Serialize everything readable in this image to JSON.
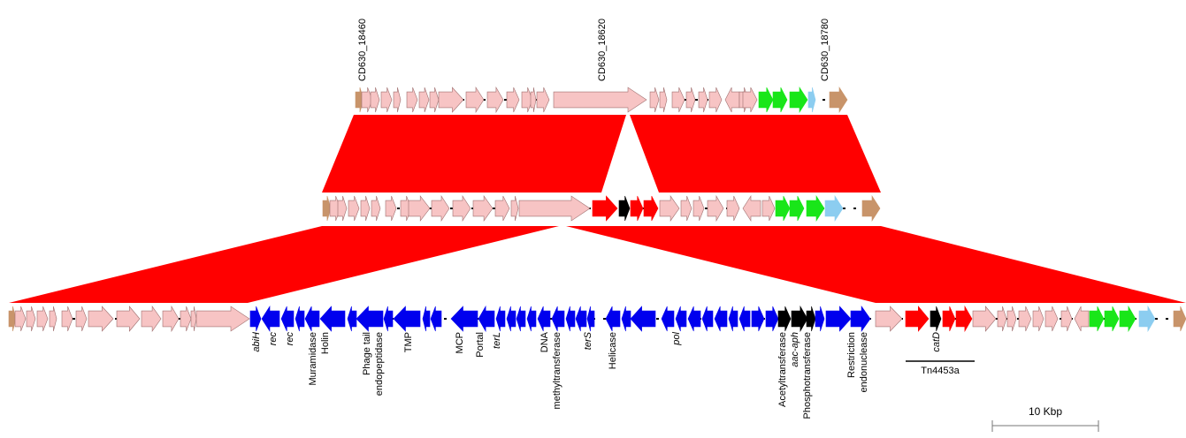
{
  "colors": {
    "homology": "#ff0000",
    "pink": "#f7c4c4",
    "tan": "#c8946a",
    "green": "#19e619",
    "lightblue": "#8ccdf0",
    "blue": "#0000ee",
    "black": "#000000",
    "red": "#ff0000",
    "outline": "#a07070"
  },
  "top_track": {
    "labels": [
      "CD630_18460",
      "CD630_18620",
      "CD630_18780"
    ],
    "gene_colors": [
      "tan",
      "pink",
      "pink",
      "pink",
      "pink",
      "pink",
      "pink",
      "pink",
      "pink",
      "pink",
      "pink",
      "pink",
      "pink",
      "pink",
      "pink",
      "pink",
      "pink",
      "pink",
      "pink",
      "pink",
      "pink",
      "pink",
      "pink",
      "pink",
      "pink",
      "green",
      "green",
      "green",
      "lightblue",
      "tan"
    ]
  },
  "middle_track": {
    "gene_colors": [
      "tan",
      "pink",
      "pink",
      "pink",
      "pink",
      "pink",
      "pink",
      "pink",
      "pink",
      "pink",
      "pink",
      "pink",
      "red",
      "black",
      "red",
      "red",
      "pink",
      "pink",
      "pink",
      "pink",
      "pink",
      "pink",
      "pink",
      "pink",
      "green",
      "green",
      "green",
      "lightblue",
      "tan"
    ]
  },
  "bottom_track": {
    "annotations": [
      {
        "text": "abiH",
        "italic": true
      },
      {
        "text": "rec",
        "italic": true
      },
      {
        "text": "rec",
        "italic": true
      },
      {
        "text": "Muramidase",
        "italic": false
      },
      {
        "text": "Holin",
        "italic": false
      },
      {
        "text": "Phage tail",
        "italic": false
      },
      {
        "text": "endopeptidase",
        "italic": false
      },
      {
        "text": "TMP",
        "italic": false
      },
      {
        "text": "MCP",
        "italic": false
      },
      {
        "text": "Portal",
        "italic": false
      },
      {
        "text": "terL",
        "italic": true
      },
      {
        "text": "DNA",
        "italic": false
      },
      {
        "text": "methyltransferase",
        "italic": false
      },
      {
        "text": "terS",
        "italic": true
      },
      {
        "text": "Helicase",
        "italic": false
      },
      {
        "text": "pol",
        "italic": true
      },
      {
        "text": "Acetyltransferase",
        "italic": false
      },
      {
        "text": "aac-aph",
        "italic": true
      },
      {
        "text": "Phosphotransferase",
        "italic": false
      },
      {
        "text": "Restriction",
        "italic": false
      },
      {
        "text": "endonuclease",
        "italic": false
      },
      {
        "text": "catD",
        "italic": true
      }
    ],
    "transposon_label": "Tn4453a"
  },
  "scale_bar": {
    "label": "10 Kbp"
  }
}
